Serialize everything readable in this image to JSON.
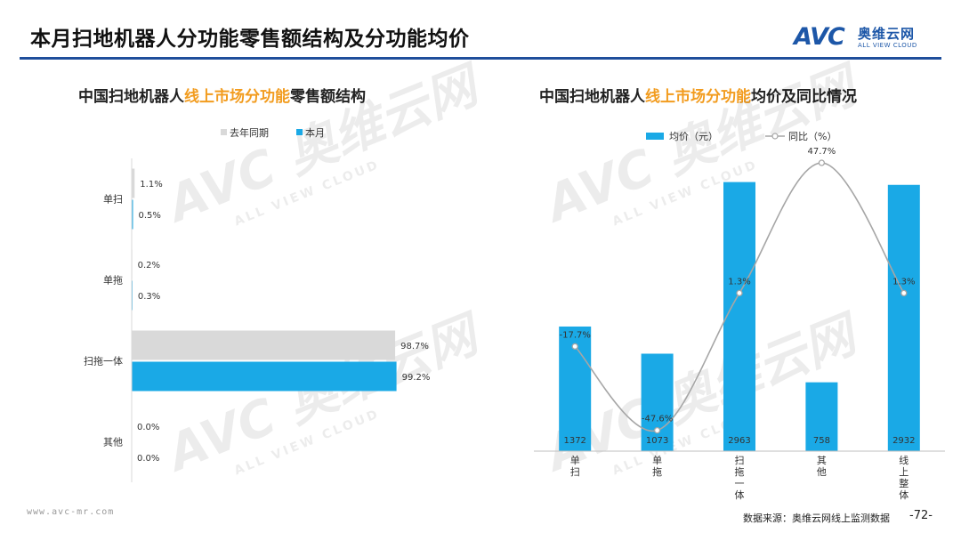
{
  "page": {
    "title": "本月扫地机器人分功能零售额结构及分功能均价",
    "logo_mark": "AVC",
    "logo_cn": "奥维云网",
    "logo_en": "ALL VIEW CLOUD",
    "watermark_big": "AVC 奥维云网",
    "watermark_small": "ALL VIEW CLOUD",
    "footer_url": "www.avc-mr.com",
    "footer_source": "数据来源：奥维云网线上监测数据",
    "page_number": "-72-"
  },
  "left_chart": {
    "title_pre": "中国扫地机器人",
    "title_hl": "线上市场分功能",
    "title_post": "零售额结构",
    "colors": {
      "last_year": "#d9d9d9",
      "this_month": "#1aa9e6",
      "highlight": "#f29c1f"
    }
  },
  "right_chart": {
    "title_pre": "中国扫地机器人",
    "title_hl": "线上市场分功能",
    "title_post": "均价及同比情况",
    "colors": {
      "bar": "#1aa9e6",
      "line": "#a6a6a6"
    }
  },
  "chart_data": [
    {
      "type": "bar",
      "orientation": "horizontal",
      "categories": [
        "单扫",
        "单拖",
        "扫拖一体",
        "其他"
      ],
      "series": [
        {
          "name": "去年同期",
          "values": [
            1.1,
            0.2,
            98.7,
            0.0
          ],
          "labels": [
            "1.1%",
            "0.2%",
            "98.7%",
            "0.0%"
          ]
        },
        {
          "name": "本月",
          "values": [
            0.5,
            0.3,
            99.2,
            0.0
          ],
          "labels": [
            "0.5%",
            "0.3%",
            "99.2%",
            "0.0%"
          ]
        }
      ],
      "xlim": [
        0,
        100
      ],
      "legend": "top",
      "grid": false
    },
    {
      "type": "bar+line",
      "categories": [
        "单扫",
        "单拖",
        "扫拖一体",
        "其他",
        "线上整体"
      ],
      "series": [
        {
          "name": "均价（元）",
          "type": "bar",
          "values": [
            1372,
            1073,
            2963,
            758,
            2932
          ],
          "labels": [
            "1372",
            "1073",
            "2963",
            "758",
            "2932"
          ]
        },
        {
          "name": "同比（%）",
          "type": "line",
          "values": [
            -17.7,
            -47.6,
            1.3,
            47.7,
            1.3
          ],
          "labels": [
            "-17.7%",
            "-47.6%",
            "1.3%",
            "47.7%",
            "1.3%"
          ]
        }
      ],
      "bar_ylim": [
        0,
        3400
      ],
      "line_ylim": [
        -55,
        55
      ],
      "legend": "top",
      "grid": false
    }
  ]
}
